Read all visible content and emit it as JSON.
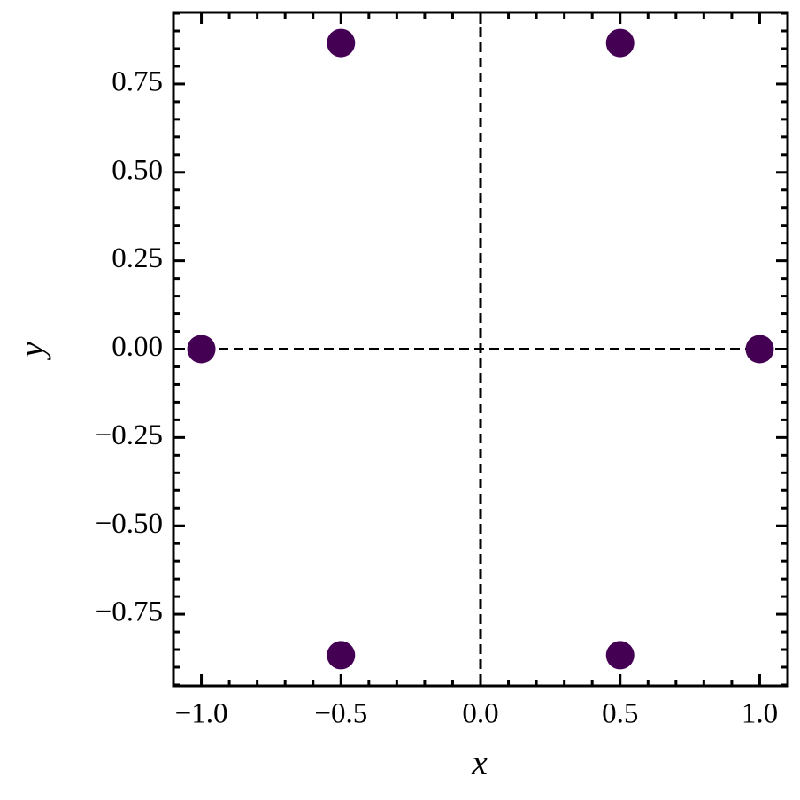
{
  "chart_data": {
    "type": "scatter",
    "xlabel": "x",
    "ylabel": "y",
    "x": [
      1,
      0.5,
      -0.5,
      -1,
      -0.5,
      0.5
    ],
    "y": [
      0,
      0.866,
      0.866,
      0,
      -0.866,
      -0.866
    ],
    "color": "#440154",
    "xlim": [
      -1.1,
      1.1
    ],
    "ylim": [
      -0.9526,
      0.9526
    ],
    "xticks": [
      {
        "value": -1,
        "label": "−1.0"
      },
      {
        "value": -0.5,
        "label": "−0.5"
      },
      {
        "value": 0,
        "label": "0.0"
      },
      0.5,
      {
        "value": 1,
        "label": "1.0"
      }
    ],
    "yticks": [
      {
        "value": -0.75,
        "label": "−0.75"
      },
      {
        "value": -0.5,
        "label": "−0.50"
      },
      {
        "value": -0.25,
        "label": "−0.25"
      },
      {
        "value": 0,
        "label": "0.00"
      },
      0.25,
      {
        "value": 0.5,
        "label": "0.50"
      },
      {
        "value": 0.75,
        "label": "0.75"
      }
    ],
    "xminorstep": 0.1,
    "yminorstep": 0.05,
    "axhline": 0,
    "axvline": 0
  }
}
